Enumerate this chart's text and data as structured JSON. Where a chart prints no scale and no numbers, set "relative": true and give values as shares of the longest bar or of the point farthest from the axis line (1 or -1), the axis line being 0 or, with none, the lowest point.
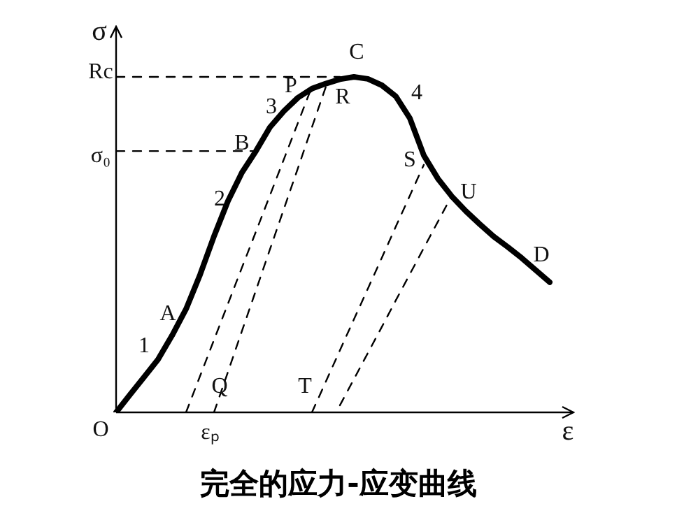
{
  "chart_data": {
    "type": "line",
    "relative": true,
    "title": "完全的应力-应变曲线",
    "xlabel": "ε",
    "ylabel": "σ",
    "marker": "none",
    "legend": false,
    "categories": [
      null,
      null,
      null,
      null,
      null,
      null,
      null,
      null,
      null,
      null,
      null,
      null,
      null,
      null,
      null,
      null,
      null,
      null,
      null,
      null,
      null,
      null,
      null,
      null,
      null,
      null,
      null,
      null,
      null,
      null,
      null,
      null
    ],
    "series": [
      {
        "color": "#000000",
        "line_style": "solid",
        "values": [
          0,
          0.053,
          0.105,
          0.158,
          0.229,
          0.308,
          0.41,
          0.525,
          0.63,
          0.715,
          0.779,
          0.85,
          0.898,
          0.938,
          0.965,
          0.98,
          0.993,
          1,
          0.994,
          0.975,
          0.942,
          0.877,
          0.766,
          0.697,
          0.644,
          0.6,
          0.561,
          0.524,
          0.493,
          0.46,
          0.424,
          0.388
        ]
      },
      {
        "color": "#000000",
        "line_style": "dashed",
        "values": [
          null,
          null,
          null,
          null,
          null,
          0,
          0.108,
          0.216,
          0.324,
          0.432,
          0.539,
          0.647,
          0.755,
          0.863,
          0.971,
          null,
          null,
          null,
          null,
          null,
          null,
          null,
          null,
          null,
          null,
          null,
          null,
          null,
          null,
          null,
          null,
          null
        ]
      },
      {
        "color": "#000000",
        "line_style": "dashed",
        "values": [
          null,
          null,
          null,
          null,
          null,
          null,
          null,
          0,
          0.121,
          0.243,
          0.364,
          0.486,
          0.607,
          0.728,
          0.85,
          0.971,
          null,
          null,
          null,
          null,
          null,
          null,
          null,
          null,
          null,
          null,
          null,
          null,
          null,
          null,
          null,
          null
        ]
      },
      {
        "color": "#000000",
        "line_style": "dashed",
        "values": [
          null,
          null,
          null,
          null,
          null,
          null,
          null,
          null,
          null,
          null,
          null,
          null,
          null,
          null,
          0,
          0.092,
          0.185,
          0.277,
          0.369,
          0.461,
          0.554,
          0.646,
          0.738,
          null,
          null,
          null,
          null,
          null,
          null,
          null,
          null,
          null
        ]
      },
      {
        "color": "#000000",
        "line_style": "dashed",
        "values": [
          null,
          null,
          null,
          null,
          null,
          null,
          null,
          null,
          null,
          null,
          null,
          null,
          null,
          null,
          null,
          null,
          0.021,
          0.099,
          0.177,
          0.255,
          0.334,
          0.412,
          0.49,
          0.568,
          0.646,
          null,
          null,
          null,
          null,
          null,
          null,
          null
        ]
      },
      {
        "color": "#000000",
        "line_style": "dashed",
        "values": [
          1,
          1,
          1,
          1,
          1,
          1,
          1,
          1,
          1,
          1,
          1,
          1,
          1,
          1,
          1,
          1,
          1,
          null,
          null,
          null,
          null,
          null,
          null,
          null,
          null,
          null,
          null,
          null,
          null,
          null,
          null,
          null
        ]
      },
      {
        "color": "#000000",
        "line_style": "dashed",
        "values": [
          0.779,
          0.779,
          0.779,
          0.779,
          0.779,
          0.779,
          0.779,
          0.779,
          0.779,
          0.779,
          0.779,
          null,
          null,
          null,
          null,
          null,
          null,
          null,
          null,
          null,
          null,
          null,
          null,
          null,
          null,
          null,
          null,
          null,
          null,
          null,
          null,
          null
        ]
      }
    ],
    "annotations": [
      "O",
      "εₚ",
      "Rc",
      "σ₀",
      "1",
      "A",
      "2",
      "B",
      "3",
      "P",
      "C",
      "R",
      "4",
      "S",
      "U",
      "D",
      "Q",
      "T"
    ]
  }
}
